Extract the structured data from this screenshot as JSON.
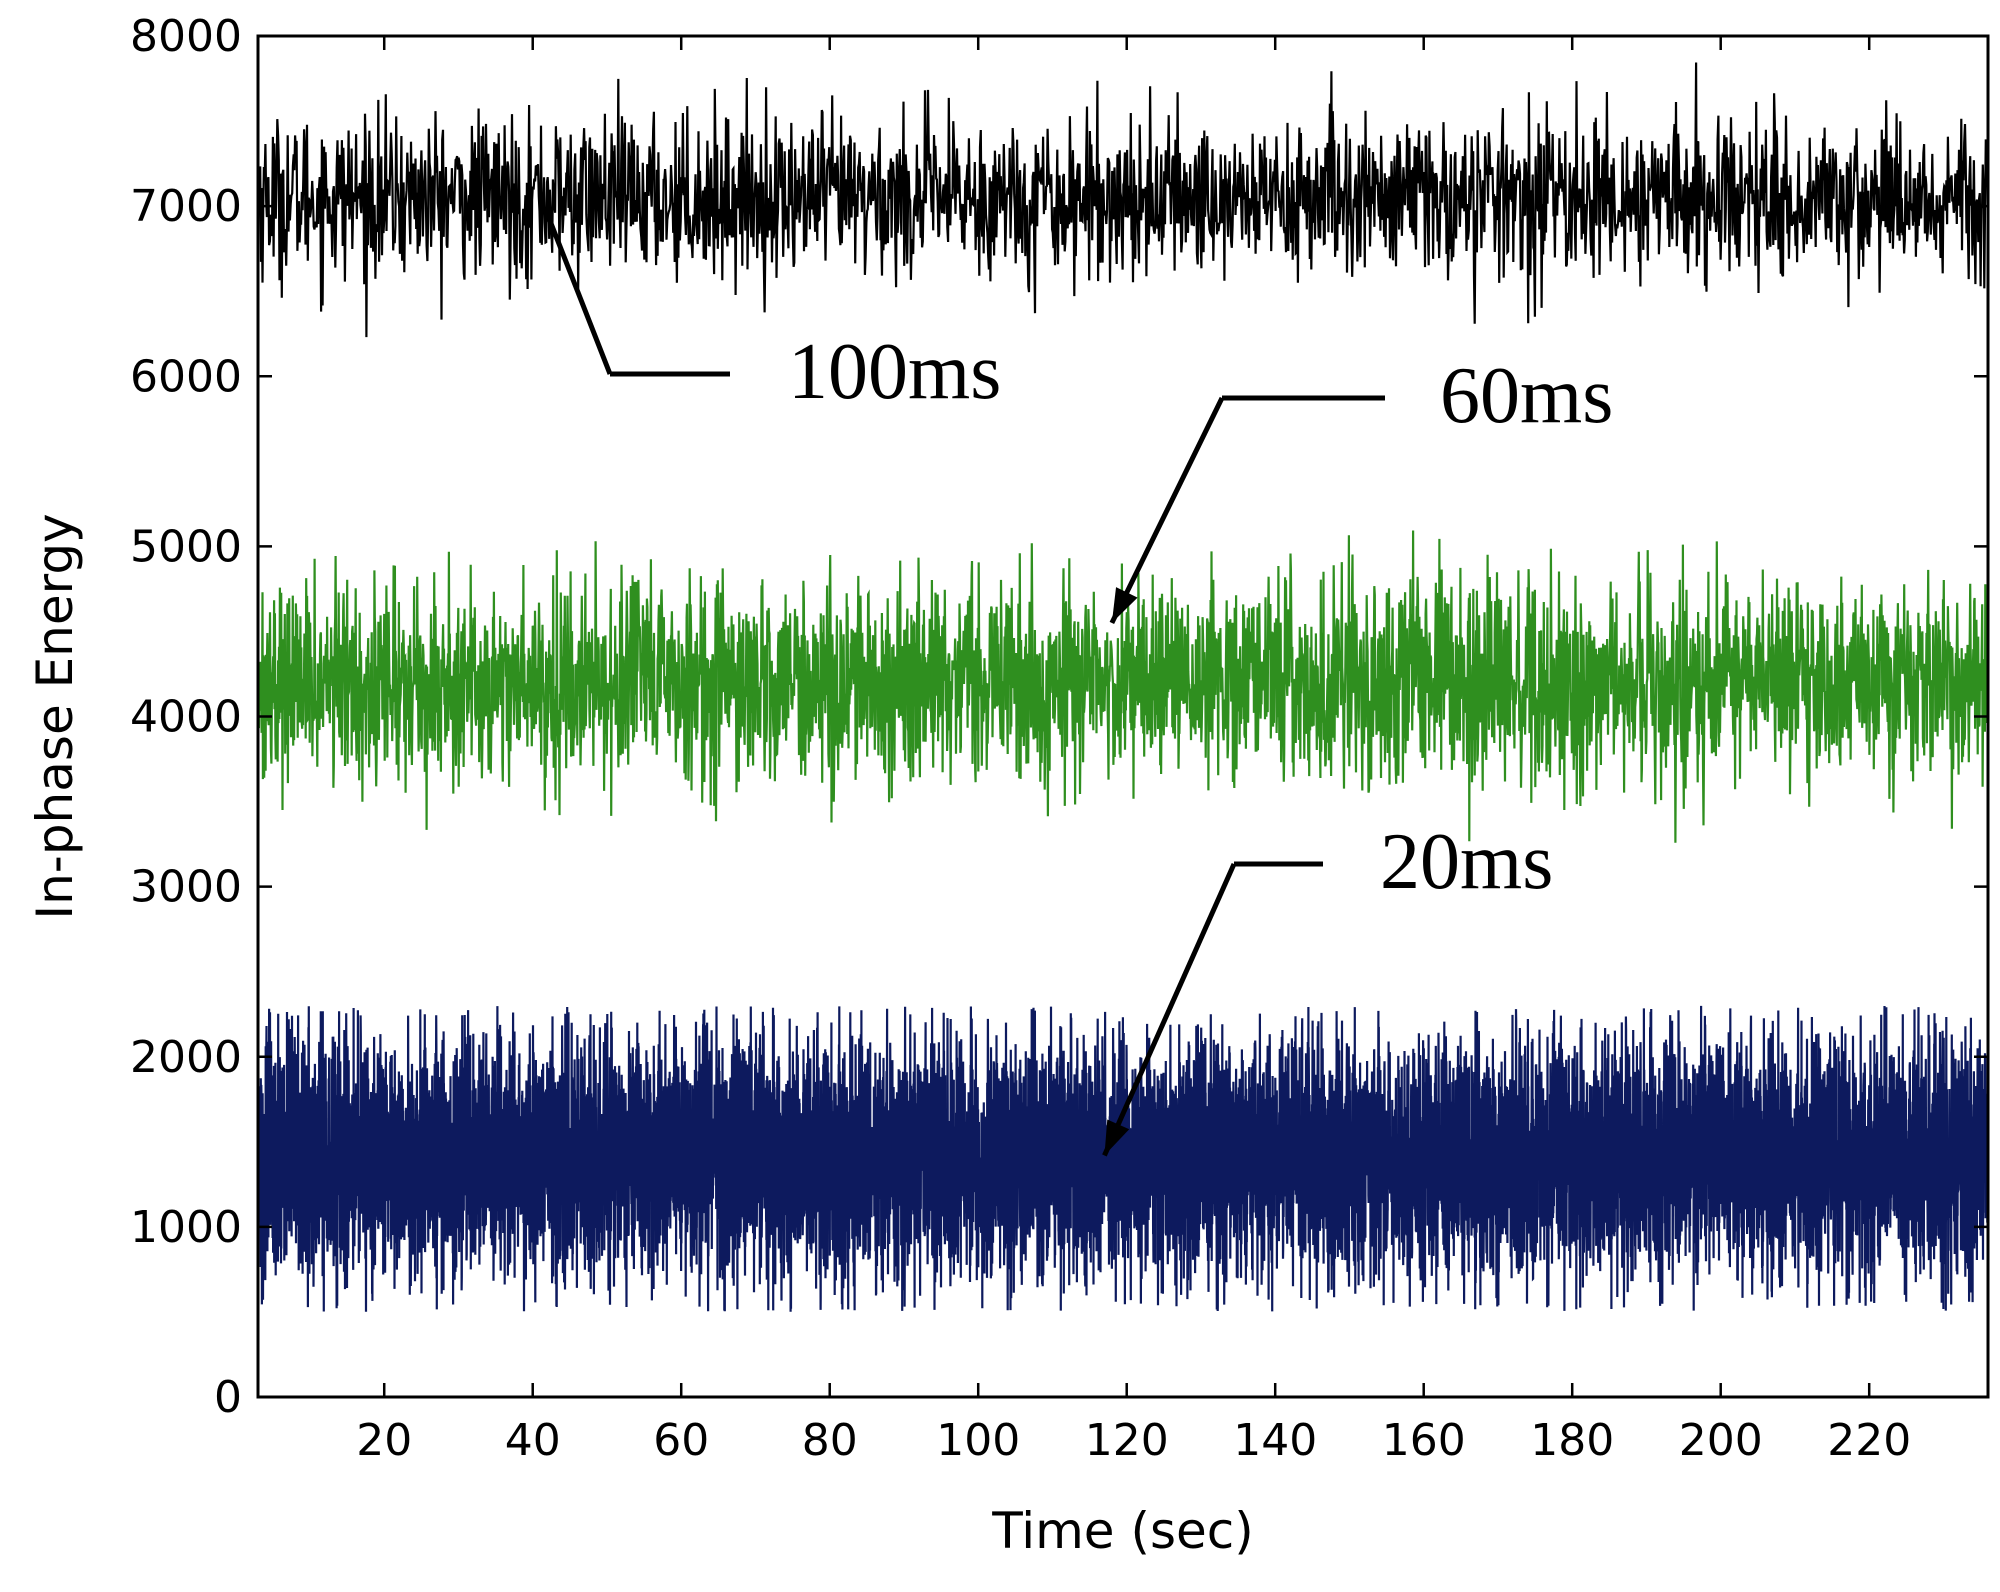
{
  "chart_data": {
    "type": "line",
    "title": "",
    "xlabel": "Time (sec)",
    "ylabel": "In-phase Energy",
    "xlim": [
      3,
      236
    ],
    "ylim": [
      0,
      8000
    ],
    "xticks": [
      20,
      40,
      60,
      80,
      100,
      120,
      140,
      160,
      180,
      200,
      220
    ],
    "xtick_labels": [
      "20",
      "40",
      "60",
      "80",
      "100",
      "120",
      "140",
      "160",
      "180",
      "200",
      "220"
    ],
    "yticks": [
      0,
      1000,
      2000,
      3000,
      4000,
      5000,
      6000,
      7000,
      8000
    ],
    "ytick_labels": [
      "0",
      "1000",
      "2000",
      "3000",
      "4000",
      "5000",
      "6000",
      "7000",
      "8000"
    ],
    "grid": false,
    "series": [
      {
        "name": "100ms",
        "color": "#000000",
        "mean": 7050,
        "typical_band": [
          6700,
          7450
        ],
        "min": 6150,
        "max": 7950,
        "num_samples": 2330,
        "annotation": {
          "label": "100ms",
          "pointer_x": 42,
          "pointer_y": 6950,
          "style": "elbow"
        }
      },
      {
        "name": "60ms",
        "color": "#2f8f1f",
        "mean": 4200,
        "typical_band": [
          3750,
          4650
        ],
        "min": 3250,
        "max": 5100,
        "num_samples": 3880,
        "annotation": {
          "label": "60ms",
          "pointer_x": 118,
          "pointer_y": 4550,
          "style": "arrow"
        }
      },
      {
        "name": "20ms",
        "color": "#0d1a5e",
        "mean": 1400,
        "typical_band": [
          850,
          1950
        ],
        "min": 500,
        "max": 2300,
        "num_samples": 11650,
        "annotation": {
          "label": "20ms",
          "pointer_x": 117,
          "pointer_y": 1420,
          "style": "arrow"
        }
      }
    ]
  }
}
